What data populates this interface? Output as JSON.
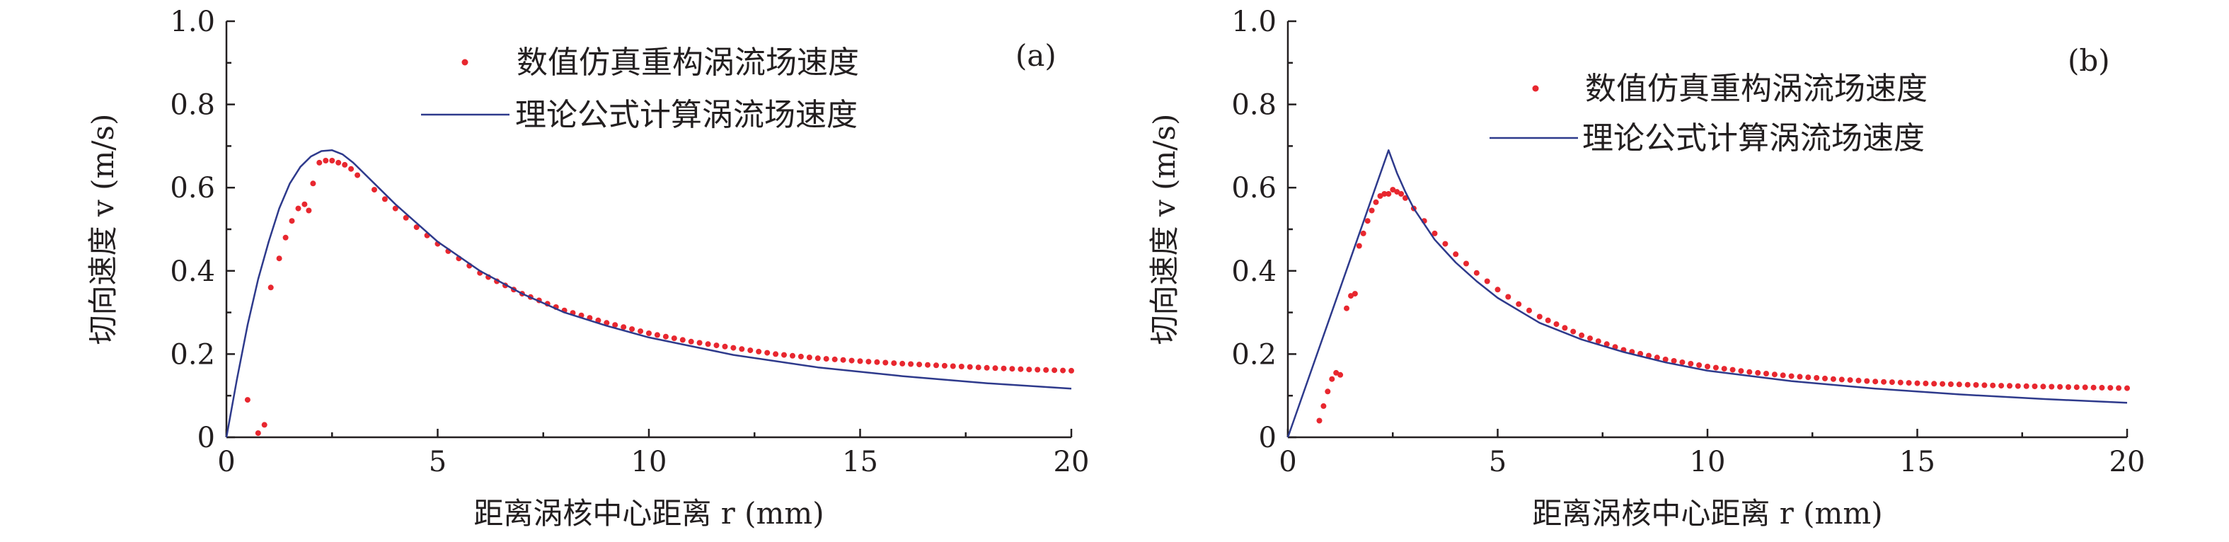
{
  "chart_data": [
    {
      "type": "scatter",
      "panel_label": "(a)",
      "xlabel": "距离涡核中心距离 r (mm)",
      "ylabel": "切向速度 v (m/s)",
      "xlim": [
        0,
        20
      ],
      "ylim": [
        0,
        1.0
      ],
      "x_ticks": [
        "0",
        "5",
        "10",
        "15",
        "20"
      ],
      "y_ticks": [
        "0",
        "0.2",
        "0.4",
        "0.6",
        "0.8",
        "1.0"
      ],
      "legend": {
        "position": "top-right"
      },
      "series": [
        {
          "name": "数值仿真重构涡流场速度",
          "kind": "scatter",
          "color": "#e8272f",
          "x": [
            0.5,
            0.75,
            0.9,
            1.05,
            1.25,
            1.4,
            1.55,
            1.7,
            1.85,
            1.95,
            2.05,
            2.2,
            2.35,
            2.5,
            2.65,
            2.8,
            2.95,
            3.1,
            3.5,
            4.0,
            4.5,
            5.0,
            5.5,
            6.0,
            7.0,
            8.0,
            9.0,
            10.0,
            11.0,
            12.0,
            13.0,
            14.0,
            15.0,
            16.0,
            17.0,
            18.0,
            19.0,
            20.0
          ],
          "y": [
            0.09,
            0.01,
            0.03,
            0.36,
            0.43,
            0.48,
            0.52,
            0.55,
            0.56,
            0.545,
            0.61,
            0.66,
            0.665,
            0.665,
            0.66,
            0.655,
            0.645,
            0.63,
            0.595,
            0.55,
            0.505,
            0.465,
            0.43,
            0.395,
            0.345,
            0.305,
            0.275,
            0.25,
            0.23,
            0.215,
            0.2,
            0.19,
            0.183,
            0.177,
            0.172,
            0.167,
            0.163,
            0.16
          ]
        },
        {
          "name": "理论公式计算涡流场速度",
          "kind": "line",
          "color": "#2e3a8c",
          "x": [
            0,
            0.25,
            0.5,
            0.75,
            1.0,
            1.25,
            1.5,
            1.75,
            2.0,
            2.25,
            2.5,
            2.75,
            3.0,
            3.5,
            4.0,
            4.5,
            5.0,
            6.0,
            7.0,
            8.0,
            9.0,
            10.0,
            12.0,
            14.0,
            16.0,
            18.0,
            20.0
          ],
          "y": [
            0,
            0.14,
            0.27,
            0.38,
            0.47,
            0.55,
            0.61,
            0.65,
            0.675,
            0.688,
            0.69,
            0.68,
            0.66,
            0.61,
            0.56,
            0.515,
            0.47,
            0.4,
            0.345,
            0.3,
            0.268,
            0.24,
            0.198,
            0.168,
            0.147,
            0.13,
            0.117
          ]
        }
      ]
    },
    {
      "type": "scatter",
      "panel_label": "(b)",
      "xlabel": "距离涡核中心距离 r (mm)",
      "ylabel": "切向速度 v (m/s)",
      "xlim": [
        0,
        20
      ],
      "ylim": [
        0,
        1.0
      ],
      "x_ticks": [
        "0",
        "5",
        "10",
        "15",
        "20"
      ],
      "y_ticks": [
        "0",
        "0.2",
        "0.4",
        "0.6",
        "0.8",
        "1.0"
      ],
      "legend": {
        "position": "top-right"
      },
      "series": [
        {
          "name": "数值仿真重构涡流场速度",
          "kind": "scatter",
          "color": "#e8272f",
          "x": [
            0.75,
            0.85,
            0.95,
            1.05,
            1.15,
            1.25,
            1.4,
            1.5,
            1.6,
            1.7,
            1.8,
            1.9,
            2.0,
            2.1,
            2.2,
            2.3,
            2.4,
            2.5,
            2.6,
            2.7,
            2.8,
            3.0,
            3.5,
            4.0,
            4.5,
            5.0,
            5.5,
            6.0,
            7.0,
            8.0,
            9.0,
            10.0,
            11.0,
            12.0,
            13.0,
            14.0,
            15.0,
            16.0,
            17.0,
            18.0,
            19.0,
            20.0
          ],
          "y": [
            0.04,
            0.075,
            0.11,
            0.14,
            0.155,
            0.15,
            0.31,
            0.34,
            0.345,
            0.46,
            0.49,
            0.52,
            0.545,
            0.565,
            0.58,
            0.585,
            0.585,
            0.595,
            0.59,
            0.585,
            0.575,
            0.55,
            0.49,
            0.44,
            0.395,
            0.355,
            0.32,
            0.29,
            0.245,
            0.21,
            0.187,
            0.17,
            0.157,
            0.147,
            0.14,
            0.134,
            0.13,
            0.127,
            0.124,
            0.122,
            0.12,
            0.118
          ]
        },
        {
          "name": "理论公式计算涡流场速度",
          "kind": "line",
          "color": "#2e3a8c",
          "x": [
            0,
            2.4,
            2.6,
            2.8,
            3.0,
            3.5,
            4.0,
            4.5,
            5.0,
            6.0,
            7.0,
            8.0,
            9.0,
            10.0,
            12.0,
            14.0,
            16.0,
            18.0,
            20.0
          ],
          "y": [
            0,
            0.69,
            0.635,
            0.59,
            0.55,
            0.475,
            0.42,
            0.375,
            0.335,
            0.275,
            0.235,
            0.205,
            0.18,
            0.16,
            0.135,
            0.117,
            0.103,
            0.092,
            0.083
          ]
        }
      ]
    }
  ]
}
